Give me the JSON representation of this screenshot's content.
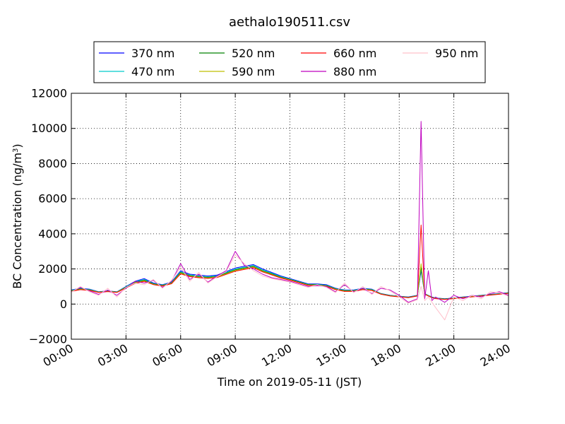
{
  "chart_data": {
    "type": "line",
    "title": "aethalo190511.csv",
    "xlabel": "Time on 2019-05-11 (JST)",
    "ylabel_main": "BC Concentration (ng/m",
    "ylabel_sup": "3",
    "ylabel_close": ")",
    "xlim_hours": [
      0,
      24
    ],
    "ylim": [
      -2000,
      12000
    ],
    "x_ticks": [
      {
        "hour": 0,
        "label": "00:00"
      },
      {
        "hour": 3,
        "label": "03:00"
      },
      {
        "hour": 6,
        "label": "06:00"
      },
      {
        "hour": 9,
        "label": "09:00"
      },
      {
        "hour": 12,
        "label": "12:00"
      },
      {
        "hour": 15,
        "label": "15:00"
      },
      {
        "hour": 18,
        "label": "18:00"
      },
      {
        "hour": 21,
        "label": "21:00"
      },
      {
        "hour": 24,
        "label": "24:00"
      }
    ],
    "y_ticks": [
      {
        "value": -2000,
        "label": "−2000"
      },
      {
        "value": 0,
        "label": "0"
      },
      {
        "value": 2000,
        "label": "2000"
      },
      {
        "value": 4000,
        "label": "4000"
      },
      {
        "value": 6000,
        "label": "6000"
      },
      {
        "value": 8000,
        "label": "8000"
      },
      {
        "value": 10000,
        "label": "10000"
      },
      {
        "value": 12000,
        "label": "12000"
      }
    ],
    "grid": true,
    "legend_position": "top",
    "x_hours": [
      0,
      0.5,
      1,
      1.5,
      2,
      2.5,
      3,
      3.5,
      4,
      4.5,
      5,
      5.5,
      6,
      6.5,
      7,
      7.5,
      8,
      8.5,
      9,
      9.5,
      10,
      10.5,
      11,
      11.5,
      12,
      12.5,
      13,
      13.5,
      14,
      14.5,
      15,
      15.5,
      16,
      16.5,
      17,
      17.5,
      18,
      18.5,
      19,
      19.2,
      19.4,
      19.6,
      19.8,
      20,
      20.5,
      21,
      21.5,
      22,
      22.5,
      23,
      23.5,
      24
    ],
    "series": [
      {
        "name": "370 nm",
        "color": "#0000ff",
        "values": [
          800,
          900,
          850,
          700,
          750,
          700,
          1000,
          1300,
          1450,
          1200,
          1100,
          1250,
          1900,
          1700,
          1650,
          1600,
          1650,
          1850,
          2050,
          2150,
          2250,
          2000,
          1800,
          1600,
          1450,
          1300,
          1150,
          1150,
          1100,
          900,
          800,
          800,
          900,
          850,
          600,
          500,
          450,
          400,
          500,
          1900,
          600,
          500,
          400,
          350,
          300,
          350,
          400,
          450,
          500,
          550,
          600,
          650
        ]
      },
      {
        "name": "470 nm",
        "color": "#00cccc",
        "values": [
          780,
          880,
          830,
          690,
          740,
          690,
          980,
          1270,
          1400,
          1170,
          1080,
          1220,
          1850,
          1660,
          1600,
          1560,
          1610,
          1800,
          2000,
          2100,
          2200,
          1950,
          1760,
          1560,
          1420,
          1270,
          1120,
          1120,
          1070,
          880,
          780,
          780,
          880,
          830,
          590,
          490,
          440,
          390,
          490,
          2000,
          590,
          490,
          390,
          340,
          290,
          340,
          390,
          440,
          490,
          540,
          590,
          640
        ]
      },
      {
        "name": "520 nm",
        "color": "#008000",
        "values": [
          760,
          860,
          810,
          680,
          730,
          680,
          960,
          1240,
          1360,
          1150,
          1060,
          1200,
          1800,
          1620,
          1560,
          1520,
          1570,
          1760,
          1950,
          2050,
          2150,
          1900,
          1720,
          1530,
          1400,
          1250,
          1100,
          1100,
          1050,
          860,
          760,
          760,
          860,
          810,
          580,
          480,
          430,
          380,
          480,
          2100,
          580,
          480,
          380,
          330,
          280,
          330,
          380,
          430,
          480,
          530,
          580,
          630
        ]
      },
      {
        "name": "590 nm",
        "color": "#bfbf00",
        "values": [
          740,
          840,
          790,
          670,
          720,
          670,
          940,
          1210,
          1320,
          1130,
          1040,
          1180,
          1760,
          1590,
          1530,
          1490,
          1540,
          1720,
          1910,
          2010,
          2110,
          1860,
          1690,
          1500,
          1380,
          1230,
          1080,
          1080,
          1030,
          840,
          740,
          740,
          840,
          790,
          570,
          470,
          420,
          370,
          470,
          2300,
          570,
          470,
          370,
          320,
          270,
          320,
          370,
          420,
          470,
          520,
          570,
          620
        ]
      },
      {
        "name": "660 nm",
        "color": "#ff0000",
        "values": [
          720,
          820,
          770,
          660,
          710,
          660,
          920,
          1180,
          1290,
          1110,
          1020,
          1160,
          1720,
          1560,
          1500,
          1460,
          1510,
          1690,
          1870,
          1970,
          2070,
          1830,
          1660,
          1480,
          1360,
          1210,
          1060,
          1060,
          1010,
          820,
          720,
          720,
          820,
          770,
          560,
          460,
          410,
          360,
          460,
          4500,
          560,
          460,
          360,
          310,
          260,
          310,
          360,
          410,
          460,
          510,
          560,
          610
        ]
      },
      {
        "name": "880 nm",
        "color": "#bf00bf",
        "values": [
          700,
          950,
          750,
          550,
          800,
          500,
          900,
          1300,
          1200,
          1350,
          950,
          1300,
          2300,
          1400,
          1700,
          1250,
          1600,
          1900,
          3000,
          2200,
          2000,
          1700,
          1500,
          1400,
          1300,
          1150,
          1000,
          1050,
          1000,
          700,
          1100,
          700,
          900,
          600,
          900,
          800,
          500,
          100,
          300,
          10400,
          300,
          1900,
          200,
          400,
          100,
          500,
          300,
          500,
          400,
          600,
          700,
          500
        ]
      },
      {
        "name": "950 nm",
        "color": "#ffc0cb",
        "values": [
          680,
          1000,
          700,
          500,
          900,
          400,
          950,
          1200,
          1100,
          1400,
          900,
          1350,
          2100,
          1300,
          1800,
          1200,
          1550,
          1850,
          2800,
          2300,
          1900,
          1600,
          1450,
          1350,
          1250,
          1100,
          950,
          1100,
          950,
          650,
          1200,
          650,
          1000,
          550,
          1000,
          750,
          400,
          50,
          250,
          1000,
          200,
          400,
          100,
          -200,
          -900,
          400,
          200,
          500,
          300,
          700,
          650,
          450
        ]
      }
    ]
  }
}
